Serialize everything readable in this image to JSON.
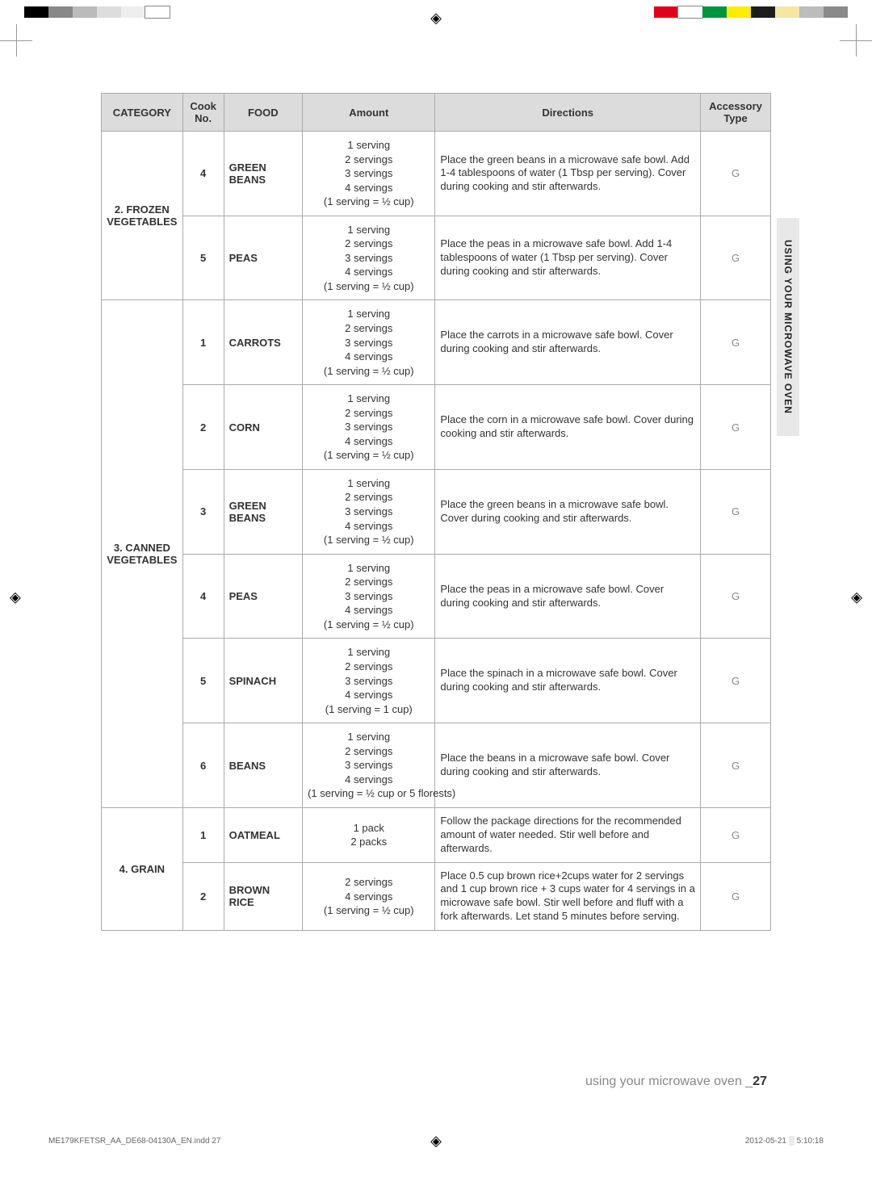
{
  "register_marks": {
    "top_left_colors": [
      "#000000",
      "#888888",
      "#bbbbbb",
      "#dddddd",
      "#eeeeee",
      "#ffffff"
    ],
    "top_right_colors": [
      "#e2001a",
      "#ffffff",
      "#009640",
      "#ffed00",
      "#1d1d1b",
      "#f5e6a3",
      "#bcbcbc",
      "#8a8a8a"
    ]
  },
  "side_tab": "USING YOUR MICROWAVE OVEN",
  "footer": {
    "text": "using your microwave oven",
    "sep": " _",
    "page": "27"
  },
  "tinyfoot_left": "ME179KFETSR_AA_DE68-04130A_EN.indd   27",
  "tinyfoot_right": "2012-05-21   ░ 5:10:18",
  "headers": {
    "category": "CATEGORY",
    "cook_no": "Cook No.",
    "food": "FOOD",
    "amount": "Amount",
    "directions": "Directions",
    "accessory": "Accessory Type"
  },
  "serving_note_half": "(1 serving = ½ cup)",
  "serving_note_one": "(1 serving = 1 cup)",
  "serving_note_beans": "(1 serving = ½ cup or 5 florests)",
  "amt_std": [
    "1 serving",
    "2 servings",
    "3 servings",
    "4 servings"
  ],
  "groups": [
    {
      "category": "2. FROZEN VEGETABLES",
      "rows": [
        {
          "cook": "4",
          "food": "GREEN BEANS",
          "amt_type": "std_half",
          "dir": "Place the green beans in a microwave safe bowl. Add 1-4 tablespoons of water (1 Tbsp per serving). Cover during cooking and stir afterwards.",
          "acc": "G"
        },
        {
          "cook": "5",
          "food": "PEAS",
          "amt_type": "std_half",
          "dir": "Place the peas in a microwave safe bowl. Add 1-4 tablespoons of water (1 Tbsp per serving). Cover during cooking and stir afterwards.",
          "acc": "G"
        }
      ]
    },
    {
      "category": "3. CANNED VEGETABLES",
      "rows": [
        {
          "cook": "1",
          "food": "CARROTS",
          "amt_type": "std_half",
          "dir": "Place the carrots in a microwave safe bowl. Cover during cooking and stir afterwards.",
          "acc": "G"
        },
        {
          "cook": "2",
          "food": "CORN",
          "amt_type": "std_half",
          "dir": "Place the corn in a microwave safe bowl. Cover during cooking and stir afterwards.",
          "acc": "G"
        },
        {
          "cook": "3",
          "food": "GREEN BEANS",
          "amt_type": "std_half",
          "dir": "Place the green beans in a microwave safe bowl. Cover during cooking and stir afterwards.",
          "acc": "G"
        },
        {
          "cook": "4",
          "food": "PEAS",
          "amt_type": "std_half",
          "dir": "Place the peas in a microwave safe bowl. Cover during cooking and stir afterwards.",
          "acc": "G"
        },
        {
          "cook": "5",
          "food": "SPINACH",
          "amt_type": "std_one",
          "dir": "Place the spinach in a microwave safe bowl. Cover during cooking and stir afterwards.",
          "acc": "G"
        },
        {
          "cook": "6",
          "food": "BEANS",
          "amt_type": "std_beans",
          "dir": "Place the beans in a microwave safe bowl. Cover during cooking and stir afterwards.",
          "acc": "G"
        }
      ]
    },
    {
      "category": "4. GRAIN",
      "rows": [
        {
          "cook": "1",
          "food": "OATMEAL",
          "amt_lines": [
            "1 pack",
            "2 packs"
          ],
          "dir": "Follow the package directions for the recommended amount of water needed. Stir well before and afterwards.",
          "acc": "G"
        },
        {
          "cook": "2",
          "food": "BROWN RICE",
          "amt_lines": [
            "2 servings",
            "4 servings",
            "(1 serving = ½ cup)"
          ],
          "dir": "Place 0.5 cup brown rice+2cups water for 2 servings and 1 cup brown rice + 3 cups water for 4 servings in a microwave safe bowl. Stir well before and fluff with a fork afterwards. Let stand 5 minutes before serving.",
          "acc": "G"
        }
      ]
    }
  ]
}
